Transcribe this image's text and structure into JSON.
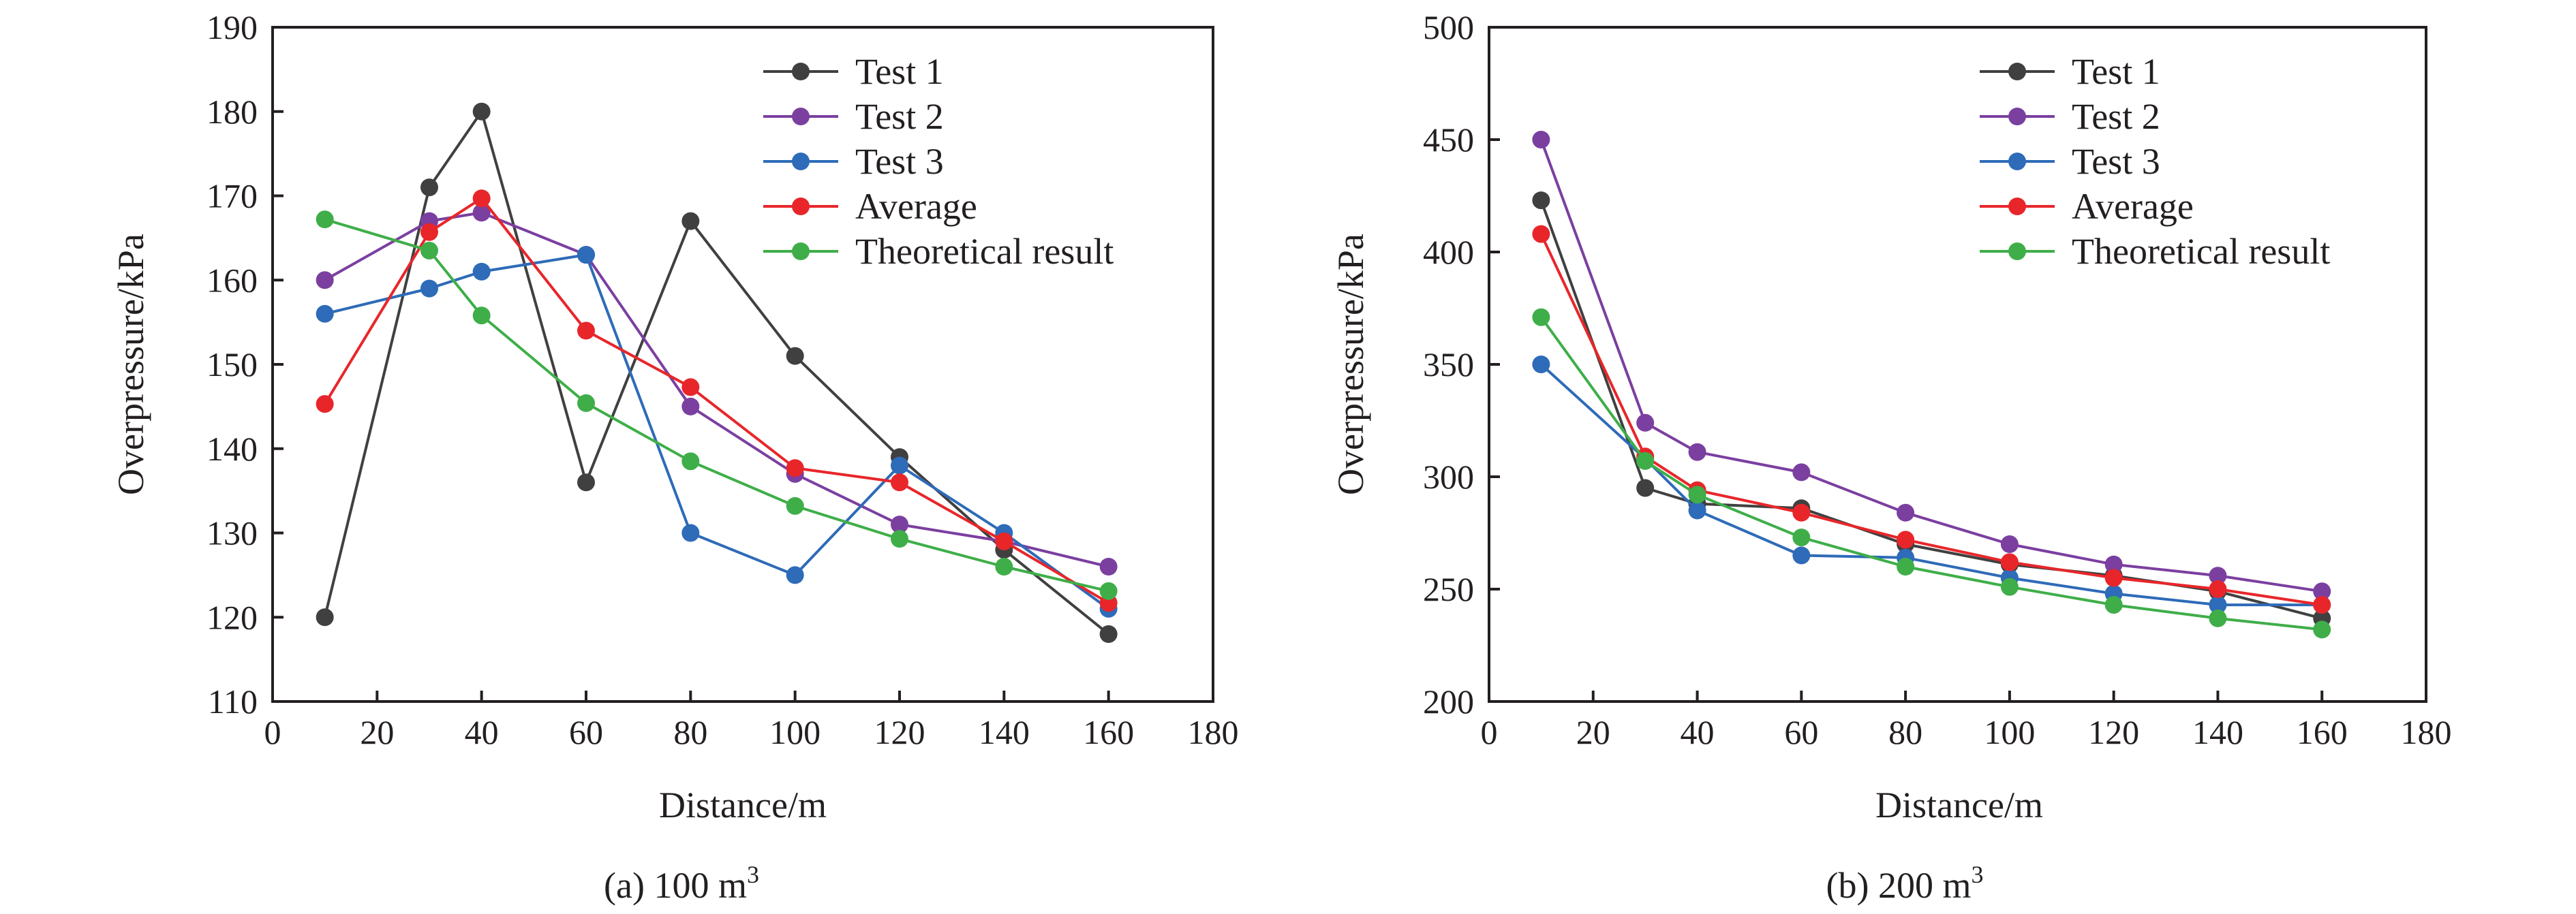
{
  "charts": [
    {
      "caption": "(a) 100 m",
      "caption_sup": "3",
      "chart_data": {
        "type": "line",
        "xlabel": "Distance/m",
        "ylabel": "Overpressure/kPa",
        "xlim": [
          0,
          180
        ],
        "ylim": [
          110,
          190
        ],
        "xticks": [
          0,
          20,
          40,
          60,
          80,
          100,
          120,
          140,
          160,
          180
        ],
        "yticks": [
          110,
          120,
          130,
          140,
          150,
          160,
          170,
          180,
          190
        ],
        "grid": false,
        "legend_position": "top-right",
        "x": [
          10,
          30,
          40,
          60,
          80,
          100,
          120,
          140,
          160
        ],
        "series": [
          {
            "name": "Test 1",
            "color": "#404040",
            "values": [
              120,
              171,
              180,
              136,
              167,
              151,
              139,
              128,
              118
            ]
          },
          {
            "name": "Test 2",
            "color": "#7b3fa0",
            "values": [
              160,
              167,
              168,
              163,
              145,
              137,
              131,
              129,
              126
            ]
          },
          {
            "name": "Test 3",
            "color": "#2e6bb8",
            "values": [
              156,
              159,
              161,
              163,
              130,
              125,
              138,
              130,
              121
            ]
          },
          {
            "name": "Average",
            "color": "#e8262a",
            "values": [
              145.3,
              165.7,
              169.7,
              154.0,
              147.3,
              137.7,
              136.0,
              129.0,
              121.7
            ]
          },
          {
            "name": "Theoretical result",
            "color": "#3fae49",
            "values": [
              167.2,
              163.5,
              155.8,
              145.4,
              138.5,
              133.2,
              129.3,
              126.0,
              123.1
            ]
          }
        ]
      }
    },
    {
      "caption": "(b) 200 m",
      "caption_sup": "3",
      "chart_data": {
        "type": "line",
        "xlabel": "Distance/m",
        "ylabel": "Overpressure/kPa",
        "xlim": [
          0,
          180
        ],
        "ylim": [
          200,
          500
        ],
        "xticks": [
          0,
          20,
          40,
          60,
          80,
          100,
          120,
          140,
          160,
          180
        ],
        "yticks": [
          200,
          250,
          300,
          350,
          400,
          450,
          500
        ],
        "grid": false,
        "legend_position": "top-right",
        "x": [
          10,
          30,
          40,
          60,
          80,
          100,
          120,
          140,
          160
        ],
        "series": [
          {
            "name": "Test 1",
            "color": "#404040",
            "values": [
              423,
              295,
              288,
              286,
              270,
              261,
              256,
              249,
              237
            ]
          },
          {
            "name": "Test 2",
            "color": "#7b3fa0",
            "values": [
              450,
              324,
              311,
              302,
              284,
              270,
              261,
              256,
              249
            ]
          },
          {
            "name": "Test 3",
            "color": "#2e6bb8",
            "values": [
              350,
              308,
              285,
              265,
              264,
              255,
              248,
              243,
              243
            ]
          },
          {
            "name": "Average",
            "color": "#e8262a",
            "values": [
              408,
              309,
              294,
              284,
              272,
              262,
              255,
              250,
              243
            ]
          },
          {
            "name": "Theoretical result",
            "color": "#3fae49",
            "values": [
              371,
              307,
              292,
              273,
              260,
              251,
              243,
              237,
              232
            ]
          }
        ]
      }
    }
  ]
}
